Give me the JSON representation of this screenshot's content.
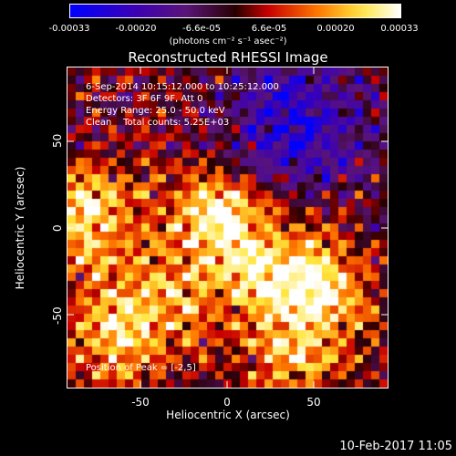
{
  "colorbar": {
    "ticks": [
      "-0.00033",
      "-0.00020",
      "-6.6e-05",
      "6.6e-05",
      "0.00020",
      "0.00033"
    ],
    "unit_label": "(photons cm⁻² s⁻¹ asec⁻²)"
  },
  "title": "Reconstructed RHESSI Image",
  "info": {
    "line1": "6-Sep-2014 10:15:12.000 to 10:25:12.000",
    "line2": "Detectors: 3F 6F 9F, Att 0",
    "line3": "Energy Range: 25.0 - 50.0 keV",
    "line4": "Clean    Total counts: 5.25E+03",
    "peak": "Position of Peak = [-2,5]"
  },
  "timestamp": "10-Feb-2017 11:05",
  "chart_data": {
    "type": "heatmap",
    "title": "Reconstructed RHESSI Image",
    "xlabel": "Heliocentric X (arcsec)",
    "ylabel": "Heliocentric Y (arcsec)",
    "xlim": [
      -93,
      93
    ],
    "ylim": [
      -93,
      93
    ],
    "x_ticks": [
      "-50",
      "0",
      "50"
    ],
    "y_ticks": [
      "50",
      "0",
      "-50"
    ],
    "colorscale": "blue-purple-red-yellow-white",
    "value_range": [
      -0.00033,
      0.00033
    ],
    "peak_position": [
      -2,
      5
    ],
    "sources": [
      {
        "x": -5,
        "y": 5,
        "value": 0.00033
      },
      {
        "x": -80,
        "y": 5,
        "value": 0.00028
      },
      {
        "x": -65,
        "y": -60,
        "value": 0.00026
      },
      {
        "x": 25,
        "y": -30,
        "value": 0.00022
      },
      {
        "x": 55,
        "y": -35,
        "value": 0.00024
      },
      {
        "x": 40,
        "y": -75,
        "value": 0.0002
      },
      {
        "x": -30,
        "y": -40,
        "value": 0.00016
      }
    ],
    "negative_region": {
      "x": 40,
      "y": 60,
      "value": -0.00025
    }
  }
}
